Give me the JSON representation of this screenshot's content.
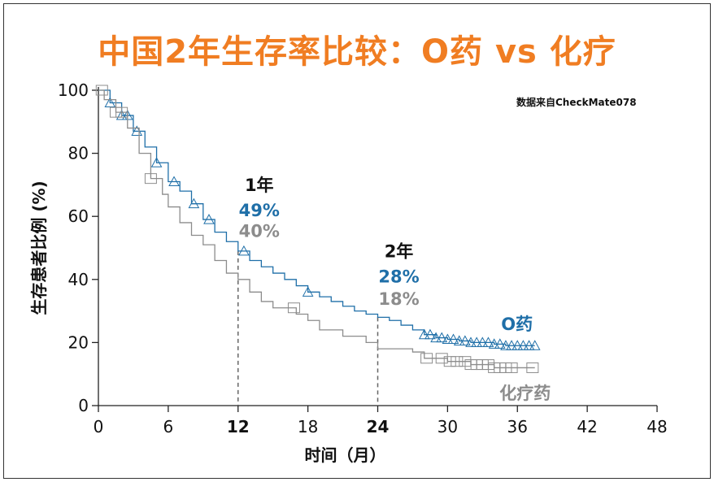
{
  "chart_data": {
    "type": "line",
    "title": "中国2年生存率比较：O药 vs 化疗",
    "source_note": "数据来自CheckMate078",
    "xlabel": "时间（月）",
    "ylabel": "生存患者比例 (%)",
    "xlim": [
      0,
      48
    ],
    "ylim": [
      0,
      100
    ],
    "xticks": [
      "0",
      "6",
      "12",
      "18",
      "24",
      "30",
      "36",
      "42",
      "48"
    ],
    "yticks": [
      "0",
      "20",
      "40",
      "60",
      "80",
      "100"
    ],
    "grid": false,
    "step": true,
    "series": [
      {
        "name": "O药",
        "color": "#1f6fa8",
        "marker": "triangle",
        "x": [
          0,
          1,
          2,
          3,
          4,
          5,
          6,
          7,
          8,
          9,
          10,
          11,
          12,
          13,
          14,
          15,
          16,
          17,
          18,
          19,
          20,
          21,
          22,
          23,
          24,
          25,
          26,
          27,
          28,
          29,
          30,
          31,
          32,
          33,
          34,
          35,
          36,
          37.5
        ],
        "y": [
          100,
          96,
          92,
          87,
          82,
          77,
          71,
          68,
          64,
          59,
          55,
          52,
          49,
          46,
          44,
          42,
          40,
          38,
          36,
          34.5,
          33,
          31.5,
          30,
          29,
          28,
          27,
          25.5,
          24,
          22.5,
          21.5,
          21,
          20.5,
          20,
          20,
          19.5,
          19,
          19,
          19
        ],
        "censored_x": [
          1,
          2,
          2.5,
          3.3,
          5,
          6.5,
          8.2,
          9.5,
          12.5,
          18,
          28,
          28.5,
          29,
          29.5,
          30,
          30.5,
          31,
          31.5,
          32,
          32.5,
          33,
          33.5,
          34,
          34.5,
          35,
          35.5,
          36,
          36.5,
          37,
          37.5
        ]
      },
      {
        "name": "化疗药",
        "color": "#8c8c8c",
        "marker": "square",
        "x": [
          0,
          0.5,
          1.5,
          2.5,
          3.5,
          4.5,
          5.5,
          6,
          7,
          8,
          9,
          10,
          11,
          12,
          13,
          14,
          15,
          17,
          18,
          19,
          21,
          23,
          24,
          25,
          27,
          28,
          30,
          32,
          34,
          37.5
        ],
        "y": [
          100,
          97,
          93,
          88,
          80,
          72,
          67,
          63,
          58,
          54,
          51,
          46,
          42,
          40,
          36,
          33,
          31,
          29,
          27,
          24,
          22,
          20,
          18,
          18,
          17,
          15,
          14,
          13,
          12,
          12
        ],
        "censored_x": [
          0.3,
          1.5,
          2,
          4.5,
          16.8,
          28.2,
          29.5,
          30.2,
          30.8,
          31.5,
          32,
          32.5,
          33,
          33.5,
          34,
          34.5,
          35,
          35.5,
          37.3
        ]
      }
    ],
    "annotations": [
      {
        "x": 12,
        "label": "1年",
        "values": [
          "49%",
          "40%"
        ]
      },
      {
        "x": 24,
        "label": "2年",
        "values": [
          "28%",
          "18%"
        ]
      }
    ]
  }
}
